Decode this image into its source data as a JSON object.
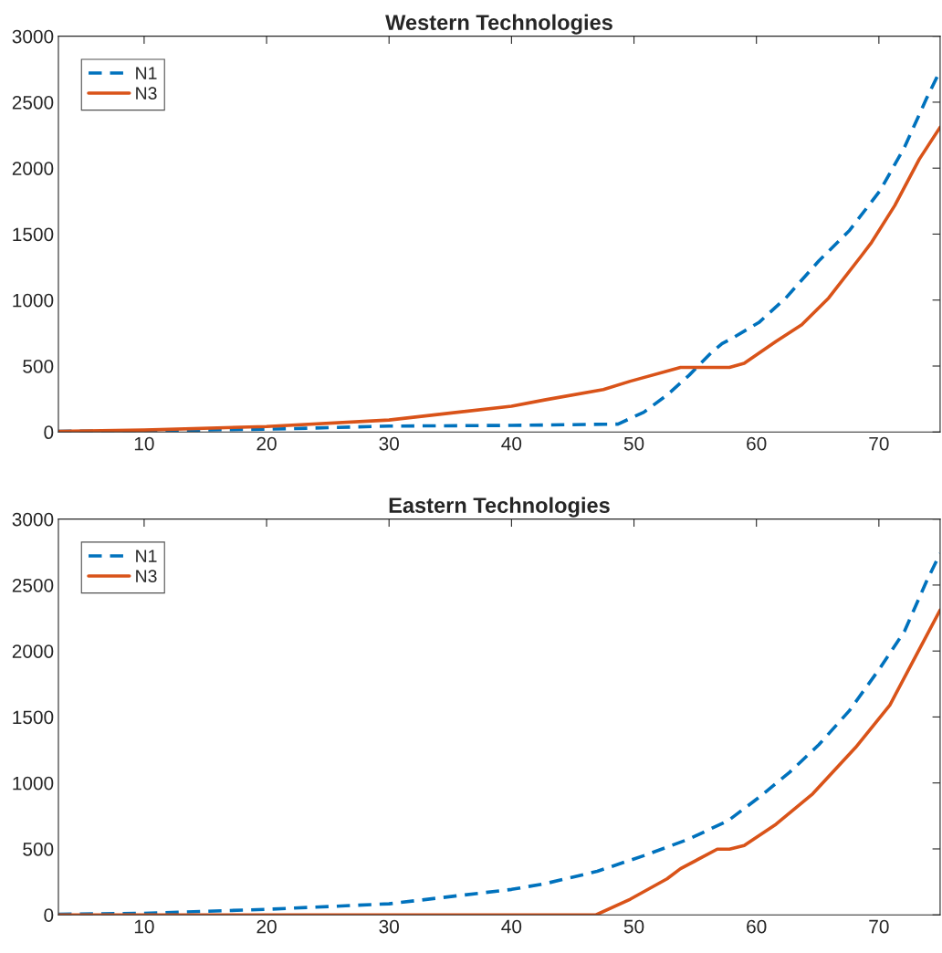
{
  "chart_data": [
    {
      "type": "line",
      "title": "Western Technologies",
      "xlim": [
        3,
        75
      ],
      "ylim": [
        0,
        3000
      ],
      "xticks": [
        10,
        20,
        30,
        40,
        50,
        60,
        70
      ],
      "yticks": [
        0,
        500,
        1000,
        1500,
        2000,
        2500,
        3000
      ],
      "grid": false,
      "legend": "top left",
      "series": [
        {
          "name": "N1",
          "color": "#0072bd",
          "line_style": "dashed",
          "x": [
            3,
            10,
            20,
            30,
            40,
            48.7,
            50.8,
            52.7,
            54.5,
            56.3,
            57.2,
            58.2,
            60.2,
            62.4,
            65.1,
            67.6,
            70.1,
            72.1,
            73.9,
            75
          ],
          "values": [
            5,
            10,
            21,
            45,
            50,
            60,
            150,
            280,
            430,
            600,
            670,
            720,
            830,
            1016,
            1297,
            1528,
            1830,
            2160,
            2530,
            2740
          ]
        },
        {
          "name": "N3",
          "color": "#d95319",
          "line_style": "solid",
          "x": [
            3,
            10,
            20,
            30,
            40,
            42.8,
            47.5,
            49.7,
            53.8,
            57.8,
            59,
            61.6,
            63.7,
            65.9,
            68.6,
            69.4,
            71.3,
            73.3,
            75
          ],
          "values": [
            5,
            15,
            42,
            91,
            196,
            245,
            322,
            385,
            490,
            490,
            520,
            687,
            813,
            1016,
            1339,
            1437,
            1717,
            2068,
            2310
          ]
        }
      ]
    },
    {
      "type": "line",
      "title": "Eastern Technologies",
      "xlim": [
        3,
        75
      ],
      "ylim": [
        0,
        3000
      ],
      "xticks": [
        10,
        20,
        30,
        40,
        50,
        60,
        70
      ],
      "yticks": [
        0,
        500,
        1000,
        1500,
        2000,
        2500,
        3000
      ],
      "grid": false,
      "legend": "top left",
      "series": [
        {
          "name": "N1",
          "color": "#0072bd",
          "line_style": "dashed",
          "x": [
            3,
            10,
            20,
            30,
            40,
            42.8,
            47,
            50.8,
            54.5,
            57.7,
            60.2,
            62.7,
            65.1,
            67.6,
            70.1,
            72.1,
            73.9,
            75
          ],
          "values": [
            5,
            12,
            42,
            84,
            193,
            238,
            330,
            449,
            575,
            715,
            890,
            1080,
            1290,
            1549,
            1872,
            2152,
            2530,
            2740
          ]
        },
        {
          "name": "N3",
          "color": "#d95319",
          "line_style": "solid",
          "x": [
            3,
            20,
            40,
            46.9,
            49.7,
            52.7,
            53.8,
            56.8,
            57.8,
            59,
            61.6,
            64.6,
            68.1,
            70.9,
            73.3,
            75
          ],
          "values": [
            0,
            0,
            0,
            0,
            119,
            273,
            350,
            498,
            498,
            526,
            687,
            918,
            1269,
            1591,
            2012,
            2310
          ]
        }
      ]
    }
  ]
}
